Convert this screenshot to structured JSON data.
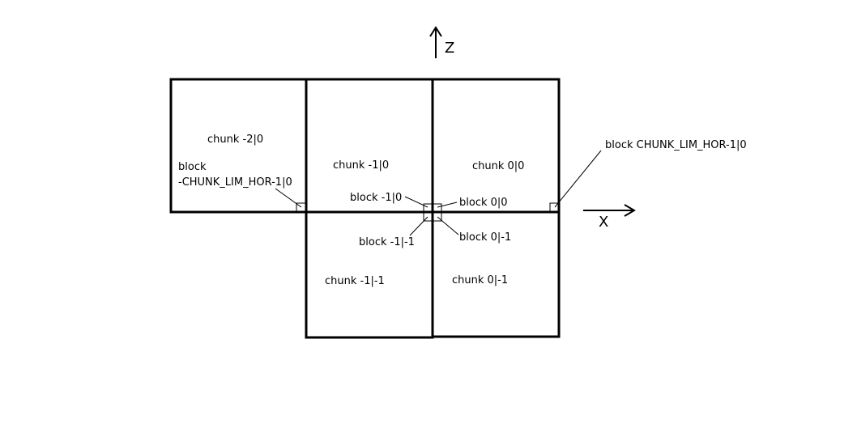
{
  "axes": {
    "z_label": "Z",
    "x_label": "X"
  },
  "chunks": {
    "chunk_m2_0": "chunk -2|0",
    "chunk_m1_0": "chunk -1|0",
    "chunk_0_0": "chunk 0|0",
    "chunk_m1_m1": "chunk -1|-1",
    "chunk_0_m1": "chunk 0|-1"
  },
  "blocks": {
    "neg_lim_line1": "block",
    "neg_lim_line2": "-CHUNK_LIM_HOR-1|0",
    "pos_lim": "block CHUNK_LIM_HOR-1|0",
    "b_m1_0": "block -1|0",
    "b_0_0": "block 0|0",
    "b_m1_m1": "block -1|-1",
    "b_0_m1": "block 0|-1"
  },
  "colors": {
    "line": "#000000",
    "background": "#ffffff"
  }
}
